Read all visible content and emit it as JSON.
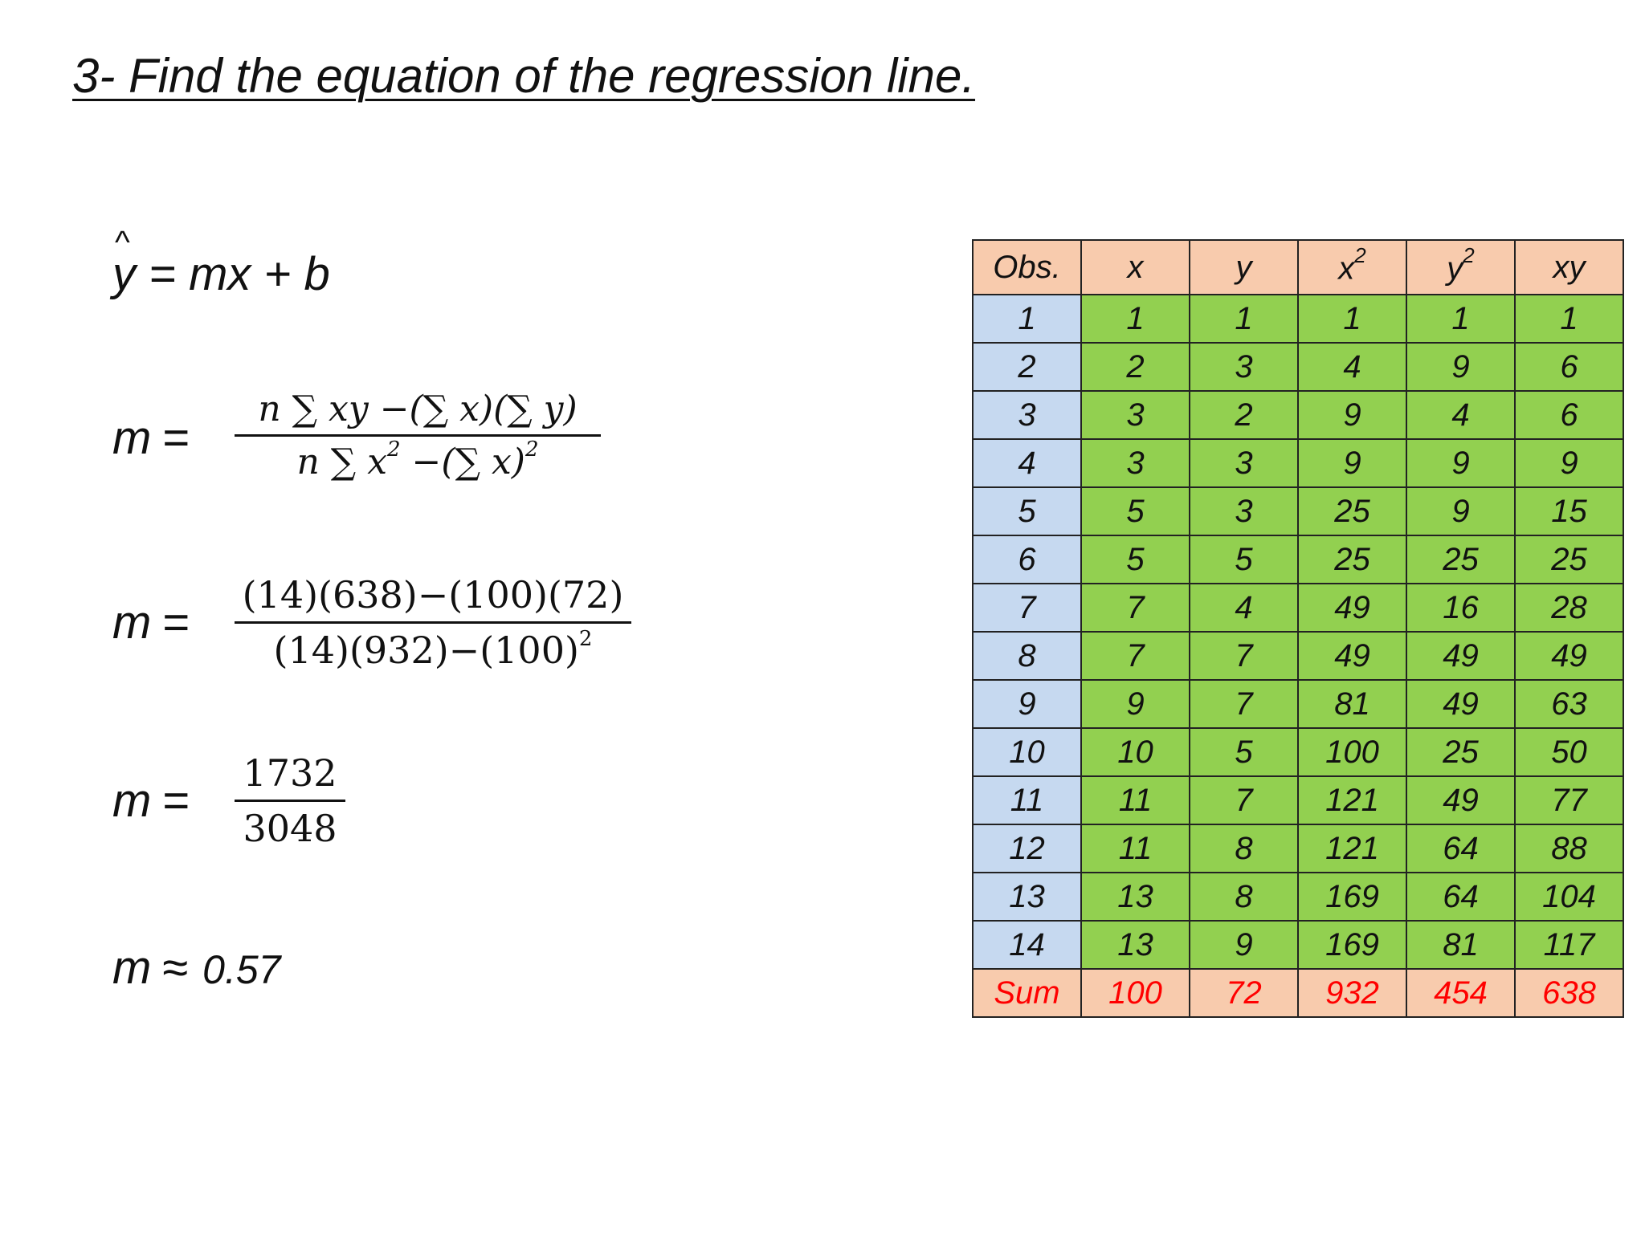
{
  "title": "3- Find the equation of the regression line.",
  "regression_eq": {
    "lhs_var": "y",
    "rhs": " = mx + b"
  },
  "m_label": "m",
  "m_eq_sign": "=",
  "formula": {
    "numerator": "n ∑ xy −(∑ x)(∑ y)",
    "denominator_pre": "n ∑ x",
    "denominator_sup": "2",
    "denominator_mid": " −(∑ x)",
    "denominator_sup2": "2"
  },
  "substituted": {
    "numerator": "(14)(638)−(100)(72)",
    "denominator": "(14)(932)−(100)",
    "denominator_sup": "2"
  },
  "simplified": {
    "numerator": "1732",
    "denominator": "3048"
  },
  "approx": {
    "symbol": "≈",
    "value": "0.57"
  },
  "table": {
    "headers": {
      "obs": "Obs.",
      "x": "x",
      "y": "y",
      "x2_base": "x",
      "x2_sup": "2",
      "y2_base": "y",
      "y2_sup": "2",
      "xy": "xy"
    },
    "rows": [
      [
        "1",
        "1",
        "1",
        "1",
        "1",
        "1"
      ],
      [
        "2",
        "2",
        "3",
        "4",
        "9",
        "6"
      ],
      [
        "3",
        "3",
        "2",
        "9",
        "4",
        "6"
      ],
      [
        "4",
        "3",
        "3",
        "9",
        "9",
        "9"
      ],
      [
        "5",
        "5",
        "3",
        "25",
        "9",
        "15"
      ],
      [
        "6",
        "5",
        "5",
        "25",
        "25",
        "25"
      ],
      [
        "7",
        "7",
        "4",
        "49",
        "16",
        "28"
      ],
      [
        "8",
        "7",
        "7",
        "49",
        "49",
        "49"
      ],
      [
        "9",
        "9",
        "7",
        "81",
        "49",
        "63"
      ],
      [
        "10",
        "10",
        "5",
        "100",
        "25",
        "50"
      ],
      [
        "11",
        "11",
        "7",
        "121",
        "49",
        "77"
      ],
      [
        "12",
        "11",
        "8",
        "121",
        "64",
        "88"
      ],
      [
        "13",
        "13",
        "8",
        "169",
        "64",
        "104"
      ],
      [
        "14",
        "13",
        "9",
        "169",
        "81",
        "117"
      ]
    ],
    "sum": [
      "Sum",
      "100",
      "72",
      "932",
      "454",
      "638"
    ]
  },
  "colors": {
    "header_fill": "#f8cbad",
    "obs_fill": "#c6d9f0",
    "value_fill": "#92d050",
    "sum_text": "#ff0000"
  }
}
